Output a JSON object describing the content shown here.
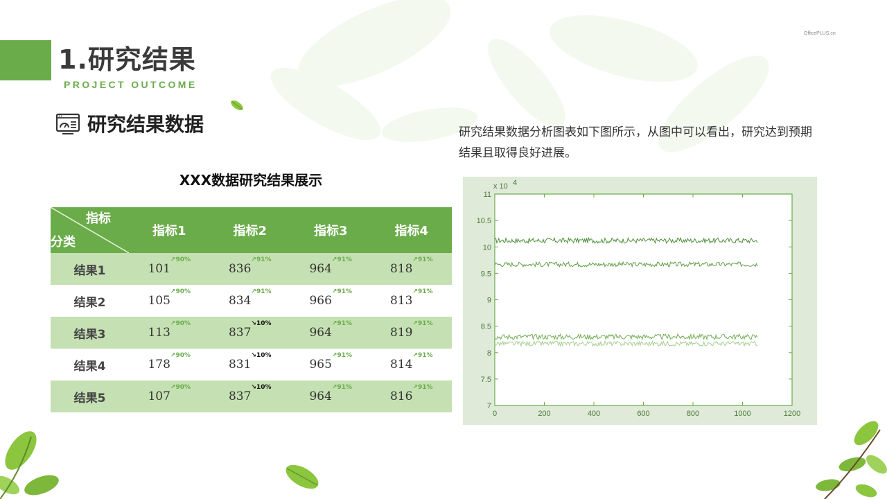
{
  "brand": "OfficePLUS.cn",
  "header": {
    "title": "1.研究结果",
    "subtitle": "PROJECT OUTCOME"
  },
  "section": {
    "icon": "dashboard-monitor-icon",
    "heading": "研究结果数据"
  },
  "table": {
    "title": "XXX数据研究结果展示",
    "corner_top": "指标",
    "corner_bottom": "分类",
    "columns": [
      "指标1",
      "指标2",
      "指标3",
      "指标4"
    ],
    "rows": [
      {
        "label": "结果1",
        "cells": [
          {
            "value": "101",
            "trend": "up",
            "pct": "90%"
          },
          {
            "value": "836",
            "trend": "up",
            "pct": "91%"
          },
          {
            "value": "964",
            "trend": "up",
            "pct": "91%"
          },
          {
            "value": "818",
            "trend": "up",
            "pct": "91%"
          }
        ]
      },
      {
        "label": "结果2",
        "cells": [
          {
            "value": "105",
            "trend": "up",
            "pct": "90%"
          },
          {
            "value": "834",
            "trend": "up",
            "pct": "91%"
          },
          {
            "value": "966",
            "trend": "up",
            "pct": "91%"
          },
          {
            "value": "813",
            "trend": "up",
            "pct": "91%"
          }
        ]
      },
      {
        "label": "结果3",
        "cells": [
          {
            "value": "113",
            "trend": "up",
            "pct": "90%"
          },
          {
            "value": "837",
            "trend": "down",
            "pct": "10%"
          },
          {
            "value": "964",
            "trend": "up",
            "pct": "91%"
          },
          {
            "value": "819",
            "trend": "up",
            "pct": "91%"
          }
        ]
      },
      {
        "label": "结果4",
        "cells": [
          {
            "value": "178",
            "trend": "up",
            "pct": "90%"
          },
          {
            "value": "831",
            "trend": "down",
            "pct": "10%"
          },
          {
            "value": "965",
            "trend": "up",
            "pct": "91%"
          },
          {
            "value": "814",
            "trend": "up",
            "pct": "91%"
          }
        ]
      },
      {
        "label": "结果5",
        "cells": [
          {
            "value": "107",
            "trend": "up",
            "pct": "90%"
          },
          {
            "value": "837",
            "trend": "down",
            "pct": "10%"
          },
          {
            "value": "964",
            "trend": "up",
            "pct": "91%"
          },
          {
            "value": "816",
            "trend": "up",
            "pct": "91%"
          }
        ]
      }
    ]
  },
  "description": "研究结果数据分析图表如下图所示，从图中可以看出，研究达到预期结果且取得良好进展。",
  "colors": {
    "accent": "#6aac4a",
    "row_tint": "#c5e0b2",
    "chart_bg": "#dfead8",
    "series": [
      "#4f8f3a",
      "#5f9d45",
      "#72ad55",
      "#a8cf92"
    ]
  },
  "chart_data": {
    "type": "line",
    "title": "",
    "xlabel": "",
    "ylabel": "",
    "multiplier_label": "x 10",
    "multiplier_exp": "4",
    "xlim": [
      0,
      1200
    ],
    "ylim": [
      7,
      11
    ],
    "xticks": [
      0,
      200,
      400,
      600,
      800,
      1000,
      1200
    ],
    "yticks": [
      7,
      7.5,
      8,
      8.5,
      9,
      9.5,
      10,
      10.5,
      11
    ],
    "ytick_labels": [
      "7",
      "7.5",
      "8",
      "8.5",
      "9",
      "9.5",
      "10",
      "10.5",
      "11"
    ],
    "grid": false,
    "series": [
      {
        "x_range": [
          0,
          1060
        ],
        "mean": 10.12,
        "noise": 0.05
      },
      {
        "x_range": [
          0,
          1060
        ],
        "mean": 9.67,
        "noise": 0.045
      },
      {
        "x_range": [
          0,
          1060
        ],
        "mean": 8.3,
        "noise": 0.05
      },
      {
        "x_range": [
          0,
          1060
        ],
        "mean": 8.17,
        "noise": 0.045
      }
    ]
  }
}
